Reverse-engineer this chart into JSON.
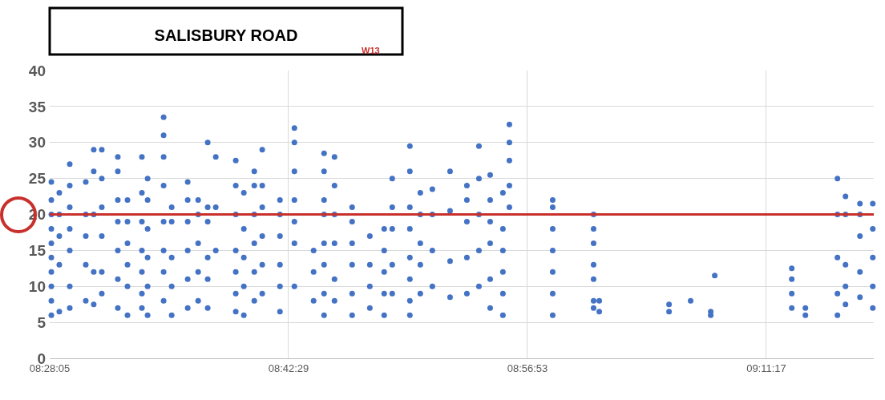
{
  "chart_data": {
    "type": "scatter",
    "title": "SALISBURY ROAD",
    "annotations": [
      "W13"
    ],
    "xlim": [
      8.468056,
      9.296
    ],
    "xticks": [
      {
        "value": 8.468056,
        "label": "08:28:05"
      },
      {
        "value": 8.708056,
        "label": "08:42:29"
      },
      {
        "value": 8.948056,
        "label": "08:56:53"
      },
      {
        "value": 9.188056,
        "label": "09:11:17"
      }
    ],
    "ylim": [
      0,
      40
    ],
    "yticks": [
      0,
      5,
      10,
      15,
      20,
      25,
      30,
      35,
      40
    ],
    "grid": true,
    "marker": "circle",
    "ref_lines": [
      {
        "axis": "y",
        "value": 20,
        "color": "#c8302c"
      }
    ],
    "series": [
      {
        "color": "#4472c4",
        "x": [
          8.4697,
          8.4697,
          8.4697,
          8.4697,
          8.4697,
          8.4697,
          8.4697,
          8.4697,
          8.4697,
          8.4697,
          8.4777,
          8.4777,
          8.4777,
          8.4777,
          8.4777,
          8.4882,
          8.4882,
          8.4882,
          8.4882,
          8.4882,
          8.4882,
          8.4882,
          8.5043,
          8.5043,
          8.5043,
          8.5043,
          8.5043,
          8.5123,
          8.5123,
          8.5123,
          8.5123,
          8.5123,
          8.5204,
          8.5204,
          8.5204,
          8.5204,
          8.5204,
          8.5204,
          8.5365,
          8.5365,
          8.5365,
          8.5365,
          8.5365,
          8.5365,
          8.5365,
          8.5462,
          8.5462,
          8.5462,
          8.5462,
          8.5462,
          8.5462,
          8.5607,
          8.5607,
          8.5607,
          8.5607,
          8.5607,
          8.5607,
          8.5607,
          8.5664,
          8.5664,
          8.5664,
          8.5664,
          8.5664,
          8.5664,
          8.5825,
          8.5825,
          8.5825,
          8.5825,
          8.5825,
          8.5825,
          8.5825,
          8.5825,
          8.5906,
          8.5906,
          8.5906,
          8.5906,
          8.5906,
          8.6067,
          8.6067,
          8.6067,
          8.6067,
          8.6067,
          8.6067,
          8.6172,
          8.6172,
          8.6172,
          8.6172,
          8.6172,
          8.6268,
          8.6268,
          8.6268,
          8.6268,
          8.6268,
          8.6268,
          8.6349,
          8.6349,
          8.6349,
          8.655,
          8.655,
          8.655,
          8.655,
          8.655,
          8.655,
          8.655,
          8.6631,
          8.6631,
          8.6631,
          8.6631,
          8.6631,
          8.6736,
          8.6736,
          8.6736,
          8.6736,
          8.6736,
          8.6736,
          8.6816,
          8.6816,
          8.6816,
          8.6816,
          8.6816,
          8.6816,
          8.6994,
          8.6994,
          8.6994,
          8.6994,
          8.6994,
          8.6994,
          8.7139,
          8.7139,
          8.7139,
          8.7139,
          8.7139,
          8.7139,
          8.7139,
          8.7332,
          8.7332,
          8.7332,
          8.7437,
          8.7437,
          8.7437,
          8.7437,
          8.7437,
          8.7437,
          8.7437,
          8.7437,
          8.7542,
          8.7542,
          8.7542,
          8.7542,
          8.7542,
          8.7542,
          8.7719,
          8.7719,
          8.7719,
          8.7719,
          8.7719,
          8.7719,
          8.7897,
          8.7897,
          8.7897,
          8.7897,
          8.8041,
          8.8041,
          8.8041,
          8.8041,
          8.8041,
          8.8122,
          8.8122,
          8.8122,
          8.8122,
          8.8122,
          8.8299,
          8.8299,
          8.8299,
          8.8299,
          8.8299,
          8.8299,
          8.8299,
          8.8299,
          8.8404,
          8.8404,
          8.8404,
          8.8404,
          8.8404,
          8.8525,
          8.8525,
          8.8525,
          8.8525,
          8.8703,
          8.8703,
          8.8703,
          8.8703,
          8.8872,
          8.8872,
          8.8872,
          8.8872,
          8.8872,
          8.8993,
          8.8993,
          8.8993,
          8.8993,
          8.8993,
          8.9106,
          8.9106,
          8.9106,
          8.9106,
          8.9106,
          8.9106,
          8.9234,
          8.9234,
          8.9234,
          8.9234,
          8.9234,
          8.9234,
          8.9299,
          8.9299,
          8.9299,
          8.9299,
          8.9299,
          8.9734,
          8.9734,
          8.9734,
          8.9734,
          8.9734,
          8.9734,
          8.9734,
          9.0145,
          9.0145,
          9.0145,
          9.0145,
          9.0145,
          9.0145,
          9.0145,
          9.0202,
          9.0202,
          9.0903,
          9.0903,
          9.112,
          9.1322,
          9.1322,
          9.1362,
          9.2136,
          9.2136,
          9.2136,
          9.2136,
          9.2273,
          9.2273,
          9.2595,
          9.2595,
          9.2595,
          9.2595,
          9.2595,
          9.2676,
          9.2676,
          9.2676,
          9.2676,
          9.2676,
          9.2821,
          9.2821,
          9.2821,
          9.2821,
          9.2821,
          9.295,
          9.295,
          9.295,
          9.295,
          9.295
        ],
        "values": [
          6,
          8,
          10,
          12,
          14,
          16,
          18,
          20,
          22,
          24.5,
          6.5,
          13,
          17,
          20,
          23,
          7,
          10,
          15,
          18,
          21,
          24,
          27,
          8,
          13,
          17,
          20,
          24.5,
          7.5,
          12,
          20,
          26,
          29,
          9,
          12,
          17,
          21,
          25,
          29,
          7,
          11,
          15,
          19,
          22,
          26,
          28,
          6,
          10,
          13,
          16,
          19,
          22,
          7,
          9,
          12,
          15,
          19,
          23,
          28,
          6,
          10,
          14,
          18,
          22,
          25,
          8,
          12,
          15,
          19,
          24,
          28,
          31,
          33.5,
          6,
          10,
          14,
          19,
          21,
          7,
          11,
          15,
          19,
          22,
          24.5,
          8,
          12,
          16,
          20,
          22,
          7,
          11,
          14,
          19,
          21,
          30,
          15,
          21,
          28,
          6.5,
          9,
          12,
          15,
          20,
          24,
          27.5,
          6,
          10,
          14,
          18,
          23,
          8,
          12,
          16,
          20,
          24,
          26,
          9,
          13,
          17,
          21,
          24,
          29,
          6.5,
          10,
          13,
          17,
          20,
          22,
          10,
          16,
          19,
          22,
          26,
          30,
          32,
          8,
          12,
          15,
          6,
          9,
          13,
          16,
          20,
          22,
          26,
          28.5,
          8,
          11,
          16,
          20,
          24,
          28,
          6,
          9,
          13,
          16,
          19,
          21,
          7,
          10,
          13,
          17,
          6,
          9,
          12,
          15,
          18,
          9,
          13,
          18,
          21,
          25,
          6,
          8,
          11,
          14,
          18,
          21,
          26,
          29.5,
          9,
          13,
          16,
          20,
          23,
          10,
          15,
          20,
          23.5,
          8.5,
          13.5,
          20.5,
          26,
          9,
          14,
          19,
          22,
          24,
          10,
          15,
          20,
          25,
          29.5,
          7,
          11,
          16,
          19,
          22,
          25.5,
          6,
          9,
          12,
          15,
          18,
          23,
          21,
          24,
          27.5,
          30,
          32.5,
          6,
          9,
          12,
          15,
          18,
          21,
          22,
          7,
          8,
          11,
          13,
          16,
          18,
          20,
          6.5,
          8,
          6.5,
          7.5,
          8,
          6,
          6.5,
          11.5,
          7,
          9,
          11,
          12.5,
          6,
          7,
          6,
          9,
          14,
          20,
          25,
          7.5,
          10,
          13,
          20,
          22.5,
          8.5,
          12,
          17,
          20,
          21.5,
          7,
          10,
          14,
          18,
          21.5
        ]
      }
    ]
  }
}
